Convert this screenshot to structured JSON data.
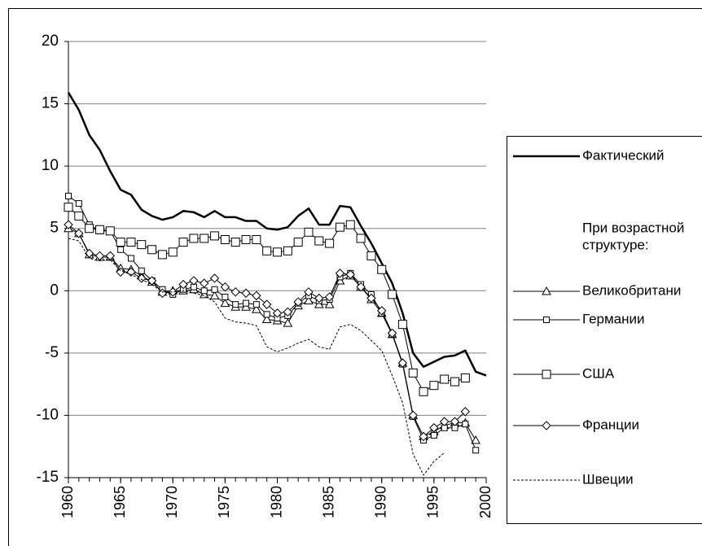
{
  "chart_data": {
    "type": "line",
    "x": [
      1960,
      1961,
      1962,
      1963,
      1964,
      1965,
      1966,
      1967,
      1968,
      1969,
      1970,
      1971,
      1972,
      1973,
      1974,
      1975,
      1976,
      1977,
      1978,
      1979,
      1980,
      1981,
      1982,
      1983,
      1984,
      1985,
      1986,
      1987,
      1988,
      1989,
      1990,
      1991,
      1992,
      1993,
      1994,
      1995,
      1996,
      1997,
      1998,
      1999,
      2000
    ],
    "xlim": [
      1960,
      2000
    ],
    "xticks": [
      1960,
      1965,
      1970,
      1975,
      1980,
      1985,
      1990,
      1995,
      2000
    ],
    "ylim": [
      -15,
      20
    ],
    "yticks": [
      -15,
      -10,
      -5,
      0,
      5,
      10,
      15,
      20
    ],
    "grid": true,
    "legend_note": [
      "При возрастной",
      "структуре:"
    ],
    "series": [
      {
        "name": "Фактический",
        "color": "#000000",
        "width": 2.5,
        "dash": "none",
        "marker": "none",
        "values": [
          15.9,
          14.5,
          12.5,
          11.3,
          9.6,
          8.1,
          7.7,
          6.5,
          6.0,
          5.7,
          5.9,
          6.4,
          6.3,
          5.9,
          6.4,
          5.9,
          5.9,
          5.6,
          5.6,
          5.0,
          4.9,
          5.1,
          6.0,
          6.6,
          5.3,
          5.3,
          6.8,
          6.7,
          5.2,
          3.8,
          2.2,
          0.6,
          -1.8,
          -5.0,
          -6.1,
          -5.7,
          -5.3,
          -5.2,
          -4.8,
          -6.5,
          -6.8
        ]
      },
      {
        "name": "Великобритани",
        "color": "#000000",
        "width": 1,
        "dash": "none",
        "marker": "triangle",
        "values": [
          5.0,
          4.6,
          2.9,
          2.7,
          2.7,
          1.8,
          1.7,
          1.2,
          0.7,
          -0.1,
          0.0,
          0.0,
          0.1,
          -0.3,
          -0.4,
          -1.0,
          -1.3,
          -1.3,
          -1.5,
          -2.3,
          -2.4,
          -2.6,
          -1.2,
          -0.8,
          -1.1,
          -1.1,
          0.8,
          1.2,
          0.3,
          -0.7,
          -1.8,
          -3.5,
          -5.8,
          -10.0,
          -11.7,
          -11.3,
          -10.8,
          -10.6,
          -10.6,
          -12.0,
          null
        ]
      },
      {
        "name": "Германии",
        "color": "#000000",
        "width": 1,
        "dash": "none",
        "marker": "square-small",
        "values": [
          7.6,
          7.0,
          5.3,
          4.8,
          4.8,
          3.3,
          2.6,
          1.6,
          0.8,
          0.1,
          -0.3,
          0.1,
          0.3,
          0.0,
          0.1,
          -0.5,
          -1.1,
          -1.0,
          -1.1,
          -1.9,
          -2.2,
          -2.0,
          -1.0,
          -0.4,
          -0.8,
          -0.7,
          1.1,
          1.4,
          0.5,
          -0.3,
          -1.8,
          -3.5,
          -5.9,
          -10.1,
          -12.0,
          -11.6,
          -11.0,
          -11.0,
          -10.7,
          -12.8,
          null
        ]
      },
      {
        "name": "США",
        "color": "#000000",
        "width": 1,
        "dash": "none",
        "marker": "square",
        "values": [
          6.7,
          6.0,
          5.0,
          4.9,
          4.8,
          3.9,
          3.9,
          3.7,
          3.3,
          2.9,
          3.1,
          3.9,
          4.2,
          4.2,
          4.4,
          4.1,
          3.9,
          4.1,
          4.1,
          3.2,
          3.1,
          3.2,
          3.9,
          4.7,
          4.0,
          3.8,
          5.1,
          5.3,
          4.2,
          2.8,
          1.7,
          -0.3,
          -2.7,
          -6.6,
          -8.1,
          -7.6,
          -7.1,
          -7.3,
          -7.0,
          null,
          null
        ]
      },
      {
        "name": "Франции",
        "color": "#000000",
        "width": 1,
        "dash": "none",
        "marker": "diamond",
        "values": [
          5.3,
          4.6,
          3.0,
          2.8,
          2.8,
          1.5,
          1.5,
          1.0,
          0.8,
          -0.2,
          -0.1,
          0.5,
          0.8,
          0.6,
          1.0,
          0.3,
          -0.1,
          -0.2,
          -0.4,
          -1.1,
          -1.8,
          -1.7,
          -0.9,
          -0.1,
          -0.6,
          -0.5,
          1.4,
          1.3,
          0.3,
          -0.6,
          -1.6,
          -3.4,
          -5.8,
          -10.0,
          -11.7,
          -11.0,
          -10.5,
          -10.5,
          -9.7,
          null,
          null
        ]
      },
      {
        "name": "Швеции",
        "color": "#000000",
        "width": 1,
        "dash": "3,2",
        "marker": "none",
        "values": [
          4.2,
          4.0,
          2.6,
          2.4,
          2.5,
          1.6,
          1.3,
          0.9,
          0.5,
          -0.1,
          -0.1,
          0.0,
          -0.2,
          -0.4,
          -0.9,
          -2.2,
          -2.5,
          -2.6,
          -2.8,
          -4.5,
          -4.9,
          -4.6,
          -4.2,
          -3.9,
          -4.5,
          -4.7,
          -2.9,
          -2.7,
          -3.2,
          -4.0,
          -4.8,
          -6.8,
          -9.0,
          -13.1,
          -14.8,
          -13.7,
          -13.0,
          null,
          null,
          null,
          null
        ]
      }
    ]
  }
}
